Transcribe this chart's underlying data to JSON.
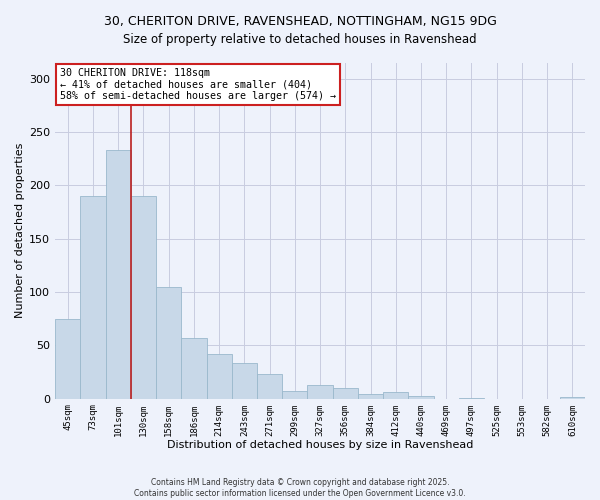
{
  "title_line1": "30, CHERITON DRIVE, RAVENSHEAD, NOTTINGHAM, NG15 9DG",
  "title_line2": "Size of property relative to detached houses in Ravenshead",
  "xlabel": "Distribution of detached houses by size in Ravenshead",
  "ylabel": "Number of detached properties",
  "categories": [
    "45sqm",
    "73sqm",
    "101sqm",
    "130sqm",
    "158sqm",
    "186sqm",
    "214sqm",
    "243sqm",
    "271sqm",
    "299sqm",
    "327sqm",
    "356sqm",
    "384sqm",
    "412sqm",
    "440sqm",
    "469sqm",
    "497sqm",
    "525sqm",
    "553sqm",
    "582sqm",
    "610sqm"
  ],
  "values": [
    75,
    190,
    233,
    190,
    105,
    57,
    42,
    33,
    23,
    7,
    13,
    10,
    4,
    6,
    3,
    0,
    1,
    0,
    0,
    0,
    2
  ],
  "bar_color": "#c8d8e8",
  "bar_edge_color": "#9ab8cc",
  "grid_color": "#c8cce0",
  "bg_color": "#eef2fb",
  "vline_x": 2.5,
  "vline_color": "#bb2020",
  "annotation_title": "30 CHERITON DRIVE: 118sqm",
  "annotation_line2": "← 41% of detached houses are smaller (404)",
  "annotation_line3": "58% of semi-detached houses are larger (574) →",
  "annotation_box_facecolor": "#ffffff",
  "annotation_box_edgecolor": "#cc2020",
  "ylim": [
    0,
    315
  ],
  "yticks": [
    0,
    50,
    100,
    150,
    200,
    250,
    300
  ],
  "footer_line1": "Contains HM Land Registry data © Crown copyright and database right 2025.",
  "footer_line2": "Contains public sector information licensed under the Open Government Licence v3.0."
}
